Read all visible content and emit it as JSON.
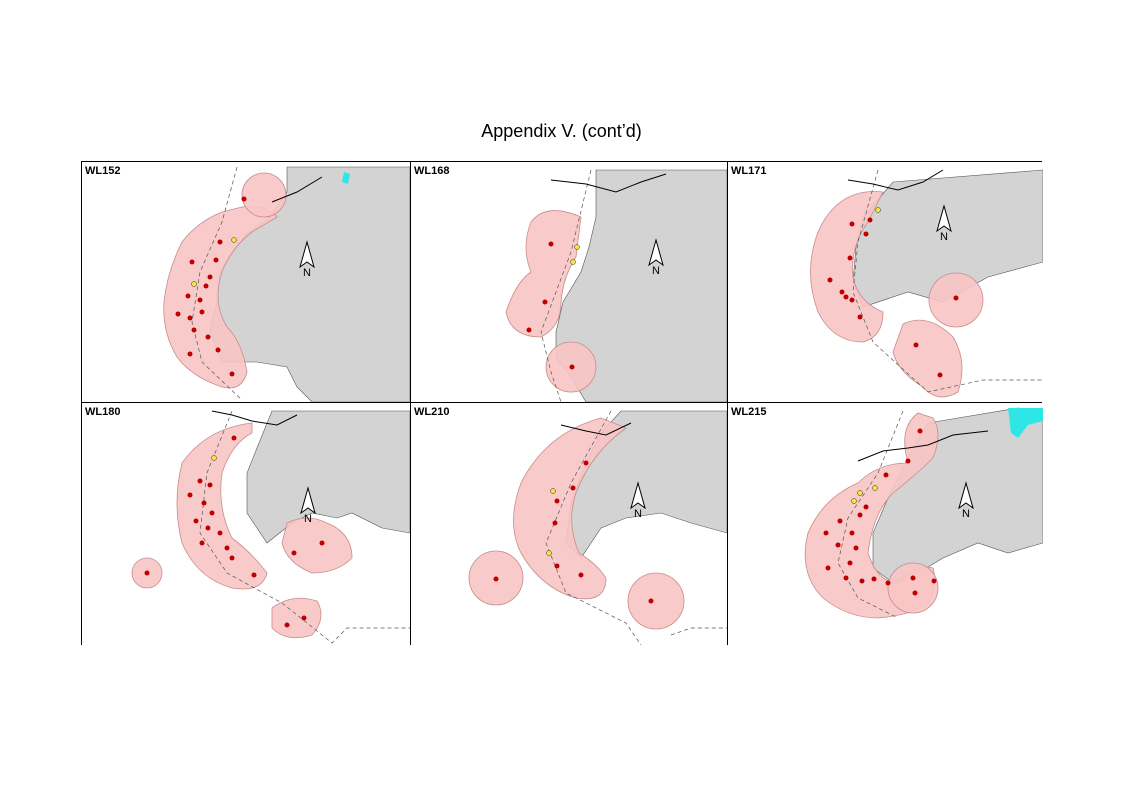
{
  "title": "Appendix V.  (cont’d)",
  "north_label": "N",
  "colors": {
    "land": "#d3d3d3",
    "range": "#f8c4c4",
    "range_edge": "#c88c8c",
    "point_red": "#c00000",
    "point_yellow": "#f5e642",
    "water_cyan": "#2ee6e6",
    "coastline": "#000000"
  },
  "panels": [
    {
      "label": "WL152"
    },
    {
      "label": "WL168"
    },
    {
      "label": "WL171"
    },
    {
      "label": "WL180"
    },
    {
      "label": "WL210"
    },
    {
      "label": "WL215"
    }
  ]
}
